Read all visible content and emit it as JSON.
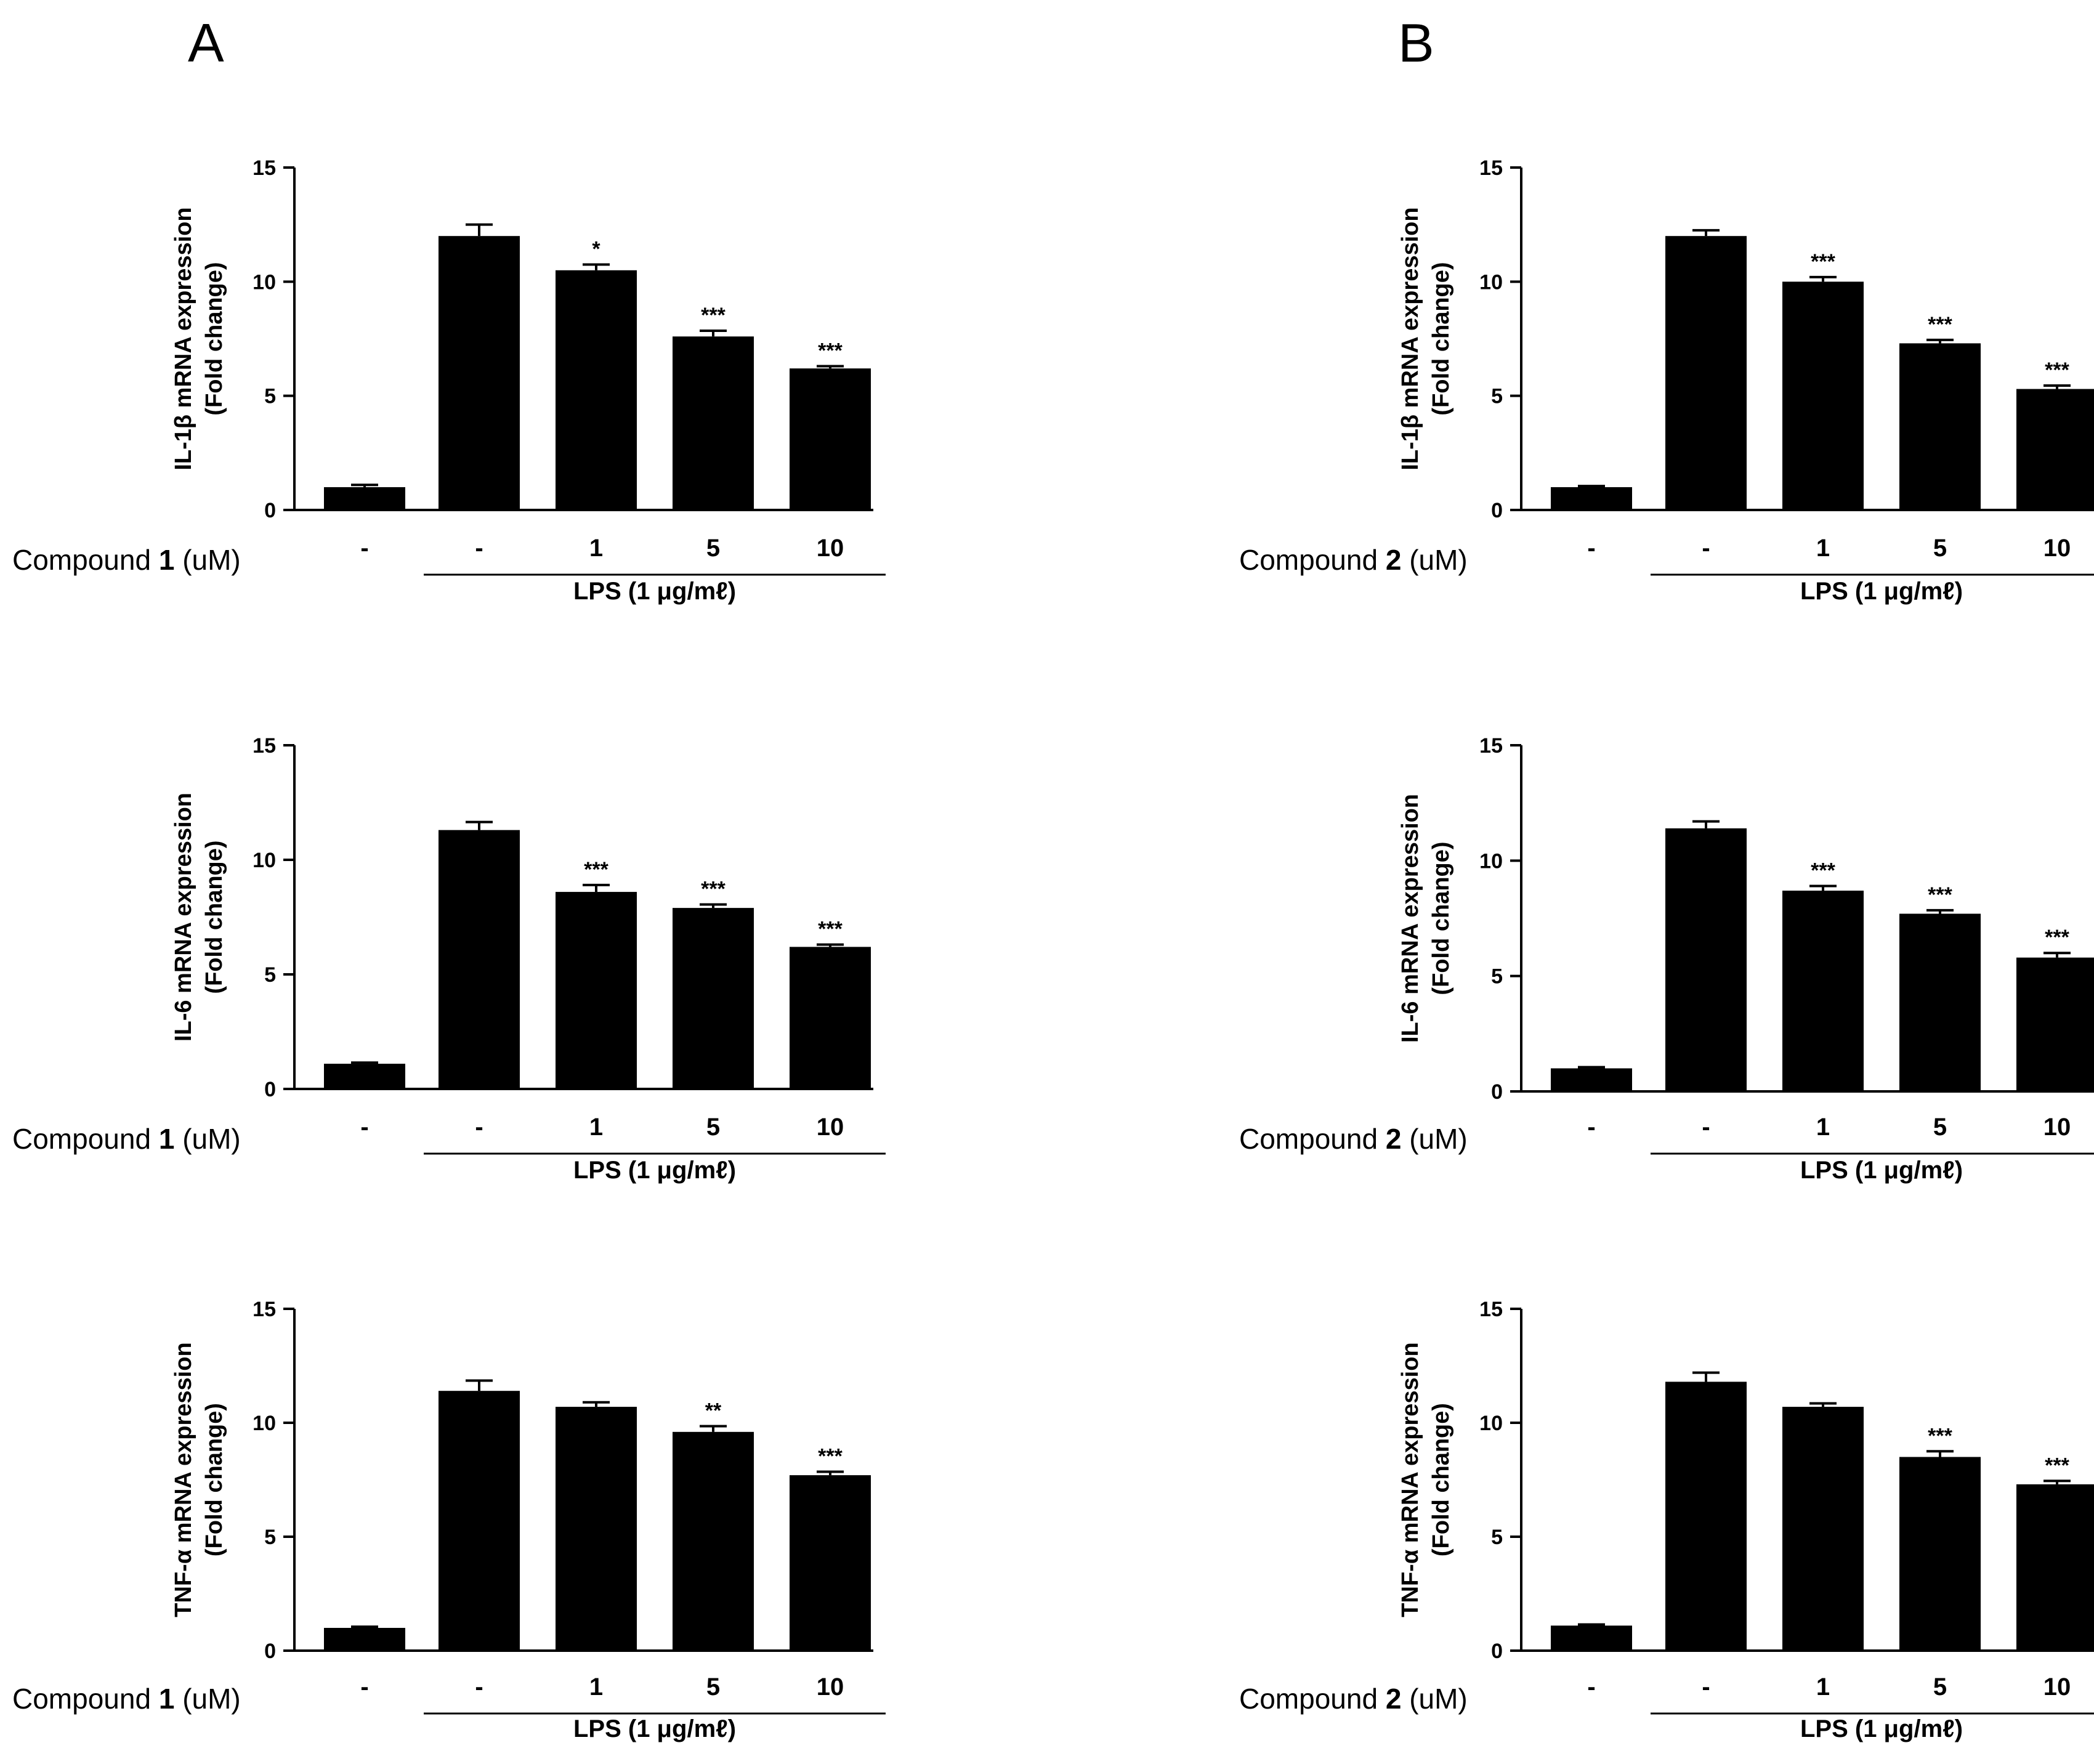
{
  "panels": [
    {
      "letter": "A",
      "compound": "1"
    },
    {
      "letter": "B",
      "compound": "2"
    }
  ],
  "row_label": {
    "prefix": "Compound",
    "unit": "(uM)"
  },
  "lps_label": "LPS (1 μg/mℓ)",
  "chart_data": [
    {
      "id": "A-IL1b",
      "panel": "A",
      "type": "bar",
      "compound": "1",
      "ylabel_line1": "IL-1β  mRNA expression",
      "ylabel_line2": "(Fold change)",
      "ylim": [
        0,
        15
      ],
      "yticks": [
        0,
        5,
        10,
        15
      ],
      "categories": [
        "-",
        "-",
        "1",
        "5",
        "10"
      ],
      "values": [
        1.0,
        12.0,
        10.5,
        7.6,
        6.2
      ],
      "errors": [
        0.1,
        0.5,
        0.25,
        0.25,
        0.1
      ],
      "significance": [
        "",
        "",
        "*",
        "***",
        "***"
      ]
    },
    {
      "id": "B-IL1b",
      "panel": "B",
      "type": "bar",
      "compound": "2",
      "ylabel_line1": "IL-1β  mRNA expression",
      "ylabel_line2": "(Fold change)",
      "ylim": [
        0,
        15
      ],
      "yticks": [
        0,
        5,
        10,
        15
      ],
      "categories": [
        "-",
        "-",
        "1",
        "5",
        "10"
      ],
      "values": [
        1.0,
        12.0,
        10.0,
        7.3,
        5.3
      ],
      "errors": [
        0.05,
        0.25,
        0.2,
        0.15,
        0.15
      ],
      "significance": [
        "",
        "",
        "***",
        "***",
        "***"
      ]
    },
    {
      "id": "A-IL6",
      "panel": "A",
      "type": "bar",
      "compound": "1",
      "ylabel_line1": "IL-6 mRNA expression",
      "ylabel_line2": "(Fold change)",
      "ylim": [
        0,
        15
      ],
      "yticks": [
        0,
        5,
        10,
        15
      ],
      "categories": [
        "-",
        "-",
        "1",
        "5",
        "10"
      ],
      "values": [
        1.1,
        11.3,
        8.6,
        7.9,
        6.2
      ],
      "errors": [
        0.05,
        0.35,
        0.3,
        0.15,
        0.1
      ],
      "significance": [
        "",
        "",
        "***",
        "***",
        "***"
      ]
    },
    {
      "id": "B-IL6",
      "panel": "B",
      "type": "bar",
      "compound": "2",
      "ylabel_line1": "IL-6 mRNA expression",
      "ylabel_line2": "(Fold change)",
      "ylim": [
        0,
        15
      ],
      "yticks": [
        0,
        5,
        10,
        15
      ],
      "categories": [
        "-",
        "-",
        "1",
        "5",
        "10"
      ],
      "values": [
        1.0,
        11.4,
        8.7,
        7.7,
        5.8
      ],
      "errors": [
        0.05,
        0.3,
        0.2,
        0.15,
        0.2
      ],
      "significance": [
        "",
        "",
        "***",
        "***",
        "***"
      ]
    },
    {
      "id": "A-TNFa",
      "panel": "A",
      "type": "bar",
      "compound": "1",
      "ylabel_line1": "TNF-α mRNA expression",
      "ylabel_line2": "(Fold change)",
      "ylim": [
        0,
        15
      ],
      "yticks": [
        0,
        5,
        10,
        15
      ],
      "categories": [
        "-",
        "-",
        "1",
        "5",
        "10"
      ],
      "values": [
        1.0,
        11.4,
        10.7,
        9.6,
        7.7
      ],
      "errors": [
        0.05,
        0.45,
        0.2,
        0.25,
        0.15
      ],
      "significance": [
        "",
        "",
        "",
        "**",
        "***"
      ]
    },
    {
      "id": "B-TNFa",
      "panel": "B",
      "type": "bar",
      "compound": "2",
      "ylabel_line1": "TNF-α mRNA expression",
      "ylabel_line2": "(Fold change)",
      "ylim": [
        0,
        15
      ],
      "yticks": [
        0,
        5,
        10,
        15
      ],
      "categories": [
        "-",
        "-",
        "1",
        "5",
        "10"
      ],
      "values": [
        1.1,
        11.8,
        10.7,
        8.5,
        7.3
      ],
      "errors": [
        0.05,
        0.4,
        0.15,
        0.25,
        0.15
      ],
      "significance": [
        "",
        "",
        "",
        "***",
        "***"
      ]
    }
  ]
}
